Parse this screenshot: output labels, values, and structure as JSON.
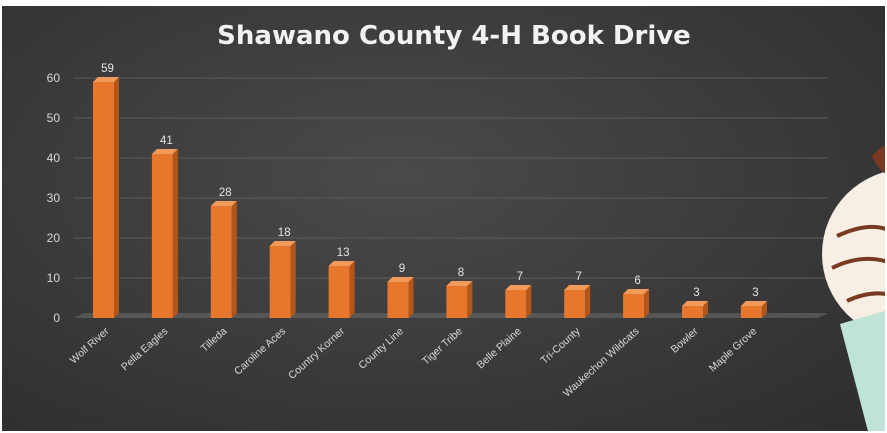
{
  "chart_data": {
    "type": "bar",
    "title": "Shawano County 4-H Book Drive",
    "categories": [
      "Wolf River",
      "Pella Eagles",
      "Tilleda",
      "Caroline Aces",
      "Country Korner",
      "County Line",
      "Tiger Tribe",
      "Belle Plaine",
      "Tri-County",
      "Waukechon Wildcats",
      "Bowler",
      "Maple Grove"
    ],
    "values": [
      59,
      41,
      28,
      18,
      13,
      9,
      8,
      7,
      7,
      6,
      3,
      3
    ],
    "ylim": [
      0,
      60
    ],
    "yticks": [
      0,
      10,
      20,
      30,
      40,
      50,
      60
    ],
    "grid": true,
    "data_labels": true,
    "colors": {
      "bar_front": "#e8772e",
      "bar_side": "#b4561a",
      "bar_top": "#f29a5c",
      "background": "#3a3a3a",
      "gridline": "#5c5c5c",
      "floor": "#6e6e6e",
      "decoration_cream": "#f7efe4",
      "decoration_brown": "#7a3a22",
      "decoration_mint": "#bfe3d4"
    }
  }
}
